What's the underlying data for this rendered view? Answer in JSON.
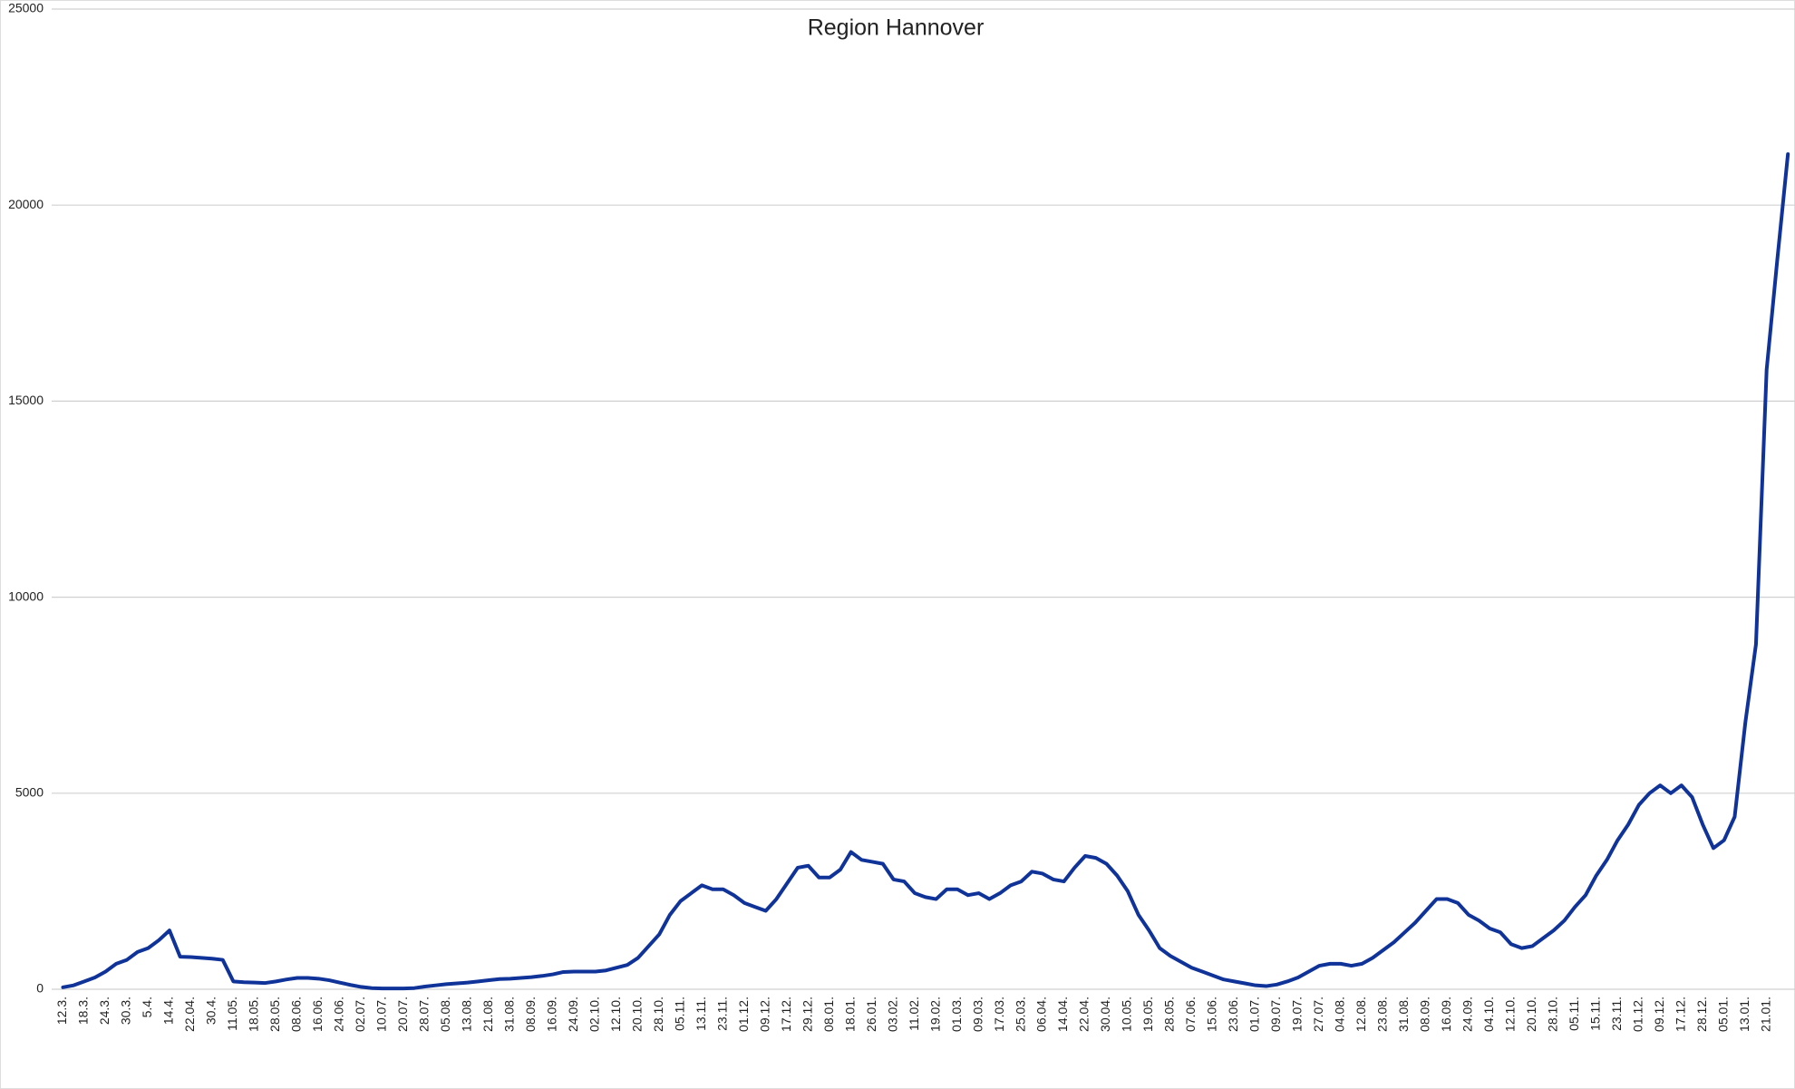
{
  "chart_data": {
    "type": "line",
    "title": "Region Hannover",
    "categories": [
      "12.3.",
      null,
      "18.3.",
      null,
      "24.3.",
      null,
      "30.3.",
      null,
      "5.4.",
      null,
      "14.4.",
      null,
      "22.04.",
      null,
      "30.4.",
      null,
      "11.05.",
      null,
      "18.05.",
      null,
      "28.05.",
      null,
      "08.06.",
      null,
      "16.06.",
      null,
      "24.06.",
      null,
      "02.07.",
      null,
      "10.07.",
      null,
      "20.07.",
      null,
      "28.07.",
      null,
      "05.08.",
      null,
      "13.08.",
      null,
      "21.08.",
      null,
      "31.08.",
      null,
      "08.09.",
      null,
      "16.09.",
      null,
      "24.09.",
      null,
      "02.10.",
      null,
      "12.10.",
      null,
      "20.10.",
      null,
      "28.10.",
      null,
      "05.11.",
      null,
      "13.11.",
      null,
      "23.11.",
      null,
      "01.12.",
      null,
      "09.12.",
      null,
      "17.12.",
      null,
      "29.12.",
      null,
      "08.01.",
      null,
      "18.01.",
      null,
      "26.01.",
      null,
      "03.02.",
      null,
      "11.02.",
      null,
      "19.02.",
      null,
      "01.03.",
      null,
      "09.03.",
      null,
      "17.03.",
      null,
      "25.03.",
      null,
      "06.04.",
      null,
      "14.04.",
      null,
      "22.04.",
      null,
      "30.04.",
      null,
      "10.05.",
      null,
      "19.05.",
      null,
      "28.05.",
      null,
      "07.06.",
      null,
      "15.06.",
      null,
      "23.06.",
      null,
      "01.07.",
      null,
      "09.07.",
      null,
      "19.07.",
      null,
      "27.07.",
      null,
      "04.08.",
      null,
      "12.08.",
      null,
      "23.08.",
      null,
      "31.08.",
      null,
      "08.09.",
      null,
      "16.09.",
      null,
      "24.09.",
      null,
      "04.10.",
      null,
      "12.10.",
      null,
      "20.10.",
      null,
      "28.10.",
      null,
      "05.11.",
      null,
      "15.11.",
      null,
      "23.11.",
      null,
      "01.12.",
      null,
      "09.12.",
      null,
      "17.12.",
      null,
      "28.12.",
      null,
      "05.01.",
      null,
      "13.01.",
      null,
      "21.01.",
      null,
      null
    ],
    "values": [
      50,
      100,
      200,
      300,
      450,
      650,
      750,
      950,
      1050,
      1250,
      1500,
      830,
      820,
      800,
      780,
      750,
      200,
      180,
      170,
      160,
      200,
      250,
      290,
      290,
      270,
      230,
      170,
      110,
      60,
      30,
      20,
      20,
      20,
      30,
      70,
      100,
      130,
      150,
      170,
      200,
      230,
      260,
      270,
      290,
      310,
      340,
      380,
      440,
      450,
      450,
      450,
      480,
      550,
      620,
      800,
      1100,
      1400,
      1900,
      2250,
      2450,
      2650,
      2550,
      2550,
      2400,
      2200,
      2100,
      2000,
      2300,
      2700,
      3100,
      3150,
      2850,
      2850,
      3050,
      3500,
      3300,
      3250,
      3200,
      2800,
      2750,
      2450,
      2350,
      2300,
      2550,
      2550,
      2400,
      2450,
      2300,
      2450,
      2650,
      2750,
      3000,
      2950,
      2800,
      2750,
      3100,
      3400,
      3350,
      3200,
      2900,
      2500,
      1900,
      1500,
      1050,
      850,
      700,
      550,
      450,
      350,
      250,
      200,
      150,
      100,
      80,
      120,
      200,
      300,
      450,
      600,
      650,
      650,
      600,
      650,
      800,
      1000,
      1200,
      1450,
      1700,
      2000,
      2300,
      2300,
      2200,
      1900,
      1750,
      1550,
      1450,
      1150,
      1050,
      1100,
      1300,
      1500,
      1750,
      2100,
      2400,
      2900,
      3300,
      3800,
      4200,
      4700,
      5000,
      5200,
      5000,
      5200,
      4900,
      4200,
      3600,
      3800,
      4400,
      6800,
      8800,
      15800,
      18600,
      21300
    ],
    "color": "#0f3399",
    "ylim": [
      0,
      25000
    ],
    "yticks": [
      0,
      5000,
      10000,
      15000,
      20000,
      25000
    ],
    "grid": true
  }
}
